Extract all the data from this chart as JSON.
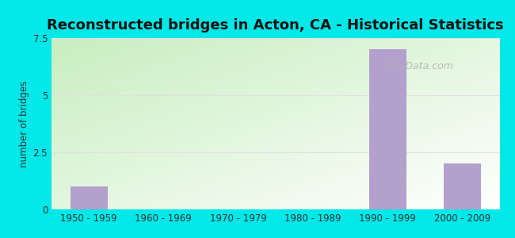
{
  "title": "Reconstructed bridges in Acton, CA - Historical Statistics",
  "categories": [
    "1950 - 1959",
    "1960 - 1969",
    "1970 - 1979",
    "1980 - 1989",
    "1990 - 1999",
    "2000 - 2009"
  ],
  "values": [
    1,
    0,
    0,
    0,
    7,
    2
  ],
  "bar_color": "#b3a0cc",
  "ylabel": "number of bridges",
  "ylim": [
    0,
    7.5
  ],
  "yticks": [
    0,
    2.5,
    5,
    7.5
  ],
  "bg_outer": "#00e8e8",
  "bg_top_left": "#c8eec0",
  "bg_bottom_right": "#ffffff",
  "grid_color": "#e0e0e0",
  "title_fontsize": 13,
  "bar_width": 0.5,
  "watermark": "City-Data.com"
}
